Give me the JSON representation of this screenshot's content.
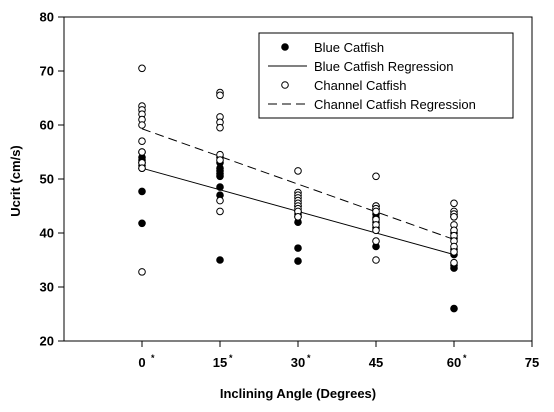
{
  "chart_data": {
    "type": "scatter",
    "title": "",
    "xlabel": "Inclining Angle (Degrees)",
    "ylabel": "Ucrit (cm/s)",
    "xlim": [
      -15,
      75
    ],
    "ylim": [
      20,
      80
    ],
    "xticks": [
      0,
      15,
      30,
      45,
      60,
      75
    ],
    "xtick_labels": [
      "0",
      "15",
      "30",
      "45",
      "60",
      "75"
    ],
    "xtick_marks": [
      "*",
      "*",
      "*",
      "",
      "*",
      ""
    ],
    "yticks": [
      20,
      30,
      40,
      50,
      60,
      70,
      80
    ],
    "ytick_labels": [
      "20",
      "30",
      "40",
      "50",
      "60",
      "70",
      "80"
    ],
    "grid": false,
    "legend_position": "top-right",
    "legend": [
      {
        "label": "Blue Catfish",
        "style": "filled-circle"
      },
      {
        "label": "Blue Catfish Regression",
        "style": "solid-line"
      },
      {
        "label": "Channel Catfish",
        "style": "open-circle"
      },
      {
        "label": "Channel Catfish Regression",
        "style": "dashed-line"
      }
    ],
    "series": [
      {
        "name": "Blue Catfish",
        "kind": "points",
        "marker": "filled",
        "points": [
          [
            0,
            55
          ],
          [
            0,
            54
          ],
          [
            0,
            53.5
          ],
          [
            0,
            53
          ],
          [
            0,
            52.5
          ],
          [
            0,
            52
          ],
          [
            0,
            47.7
          ],
          [
            0,
            41.8
          ],
          [
            15,
            54
          ],
          [
            15,
            53
          ],
          [
            15,
            52
          ],
          [
            15,
            51.5
          ],
          [
            15,
            51
          ],
          [
            15,
            50.5
          ],
          [
            15,
            48.5
          ],
          [
            15,
            47
          ],
          [
            15,
            35
          ],
          [
            30,
            45
          ],
          [
            30,
            44
          ],
          [
            30,
            43.5
          ],
          [
            30,
            43
          ],
          [
            30,
            42
          ],
          [
            30,
            37.2
          ],
          [
            30,
            34.8
          ],
          [
            45,
            45
          ],
          [
            45,
            44.5
          ],
          [
            45,
            43.5
          ],
          [
            45,
            42.8
          ],
          [
            45,
            42
          ],
          [
            45,
            41
          ],
          [
            45,
            37.5
          ],
          [
            60,
            43
          ],
          [
            60,
            40
          ],
          [
            60,
            39
          ],
          [
            60,
            37
          ],
          [
            60,
            36
          ],
          [
            60,
            34
          ],
          [
            60,
            33.5
          ],
          [
            60,
            26
          ]
        ]
      },
      {
        "name": "Blue Catfish Regression",
        "kind": "line",
        "dash": "solid",
        "points": [
          [
            0,
            52
          ],
          [
            60,
            36
          ]
        ]
      },
      {
        "name": "Channel Catfish",
        "kind": "points",
        "marker": "open",
        "points": [
          [
            0,
            70.5
          ],
          [
            0,
            63.5
          ],
          [
            0,
            62.8
          ],
          [
            0,
            62
          ],
          [
            0,
            61
          ],
          [
            0,
            60
          ],
          [
            0,
            57
          ],
          [
            0,
            55
          ],
          [
            0,
            53
          ],
          [
            0,
            52
          ],
          [
            0,
            32.8
          ],
          [
            15,
            66
          ],
          [
            15,
            65.5
          ],
          [
            15,
            61.5
          ],
          [
            15,
            60.5
          ],
          [
            15,
            59.5
          ],
          [
            15,
            54.5
          ],
          [
            15,
            53.5
          ],
          [
            15,
            46
          ],
          [
            15,
            44
          ],
          [
            30,
            51.5
          ],
          [
            30,
            47.5
          ],
          [
            30,
            47
          ],
          [
            30,
            46.5
          ],
          [
            30,
            46
          ],
          [
            30,
            45.5
          ],
          [
            30,
            45
          ],
          [
            30,
            44.5
          ],
          [
            30,
            44
          ],
          [
            30,
            43
          ],
          [
            45,
            50.5
          ],
          [
            45,
            45
          ],
          [
            45,
            44.5
          ],
          [
            45,
            44
          ],
          [
            45,
            42.5
          ],
          [
            45,
            41.5
          ],
          [
            45,
            40.5
          ],
          [
            45,
            38.5
          ],
          [
            45,
            35
          ],
          [
            60,
            45.5
          ],
          [
            60,
            44
          ],
          [
            60,
            43.5
          ],
          [
            60,
            43
          ],
          [
            60,
            41.5
          ],
          [
            60,
            40.5
          ],
          [
            60,
            39.5
          ],
          [
            60,
            38.5
          ],
          [
            60,
            37.5
          ],
          [
            60,
            36.5
          ],
          [
            60,
            34.5
          ]
        ]
      },
      {
        "name": "Channel Catfish Regression",
        "kind": "line",
        "dash": "dashed",
        "points": [
          [
            0,
            59.3
          ],
          [
            60,
            38.8
          ]
        ]
      }
    ]
  }
}
